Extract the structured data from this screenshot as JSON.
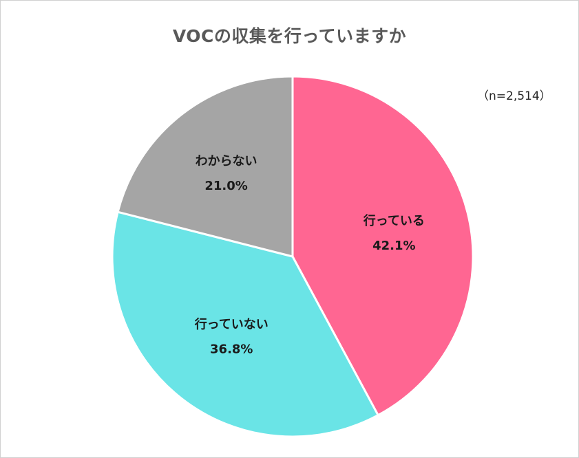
{
  "chart_data": {
    "type": "pie",
    "title": "VOCの収集を行っていますか",
    "note": "（n=2,514）",
    "slices": [
      {
        "label": "行っている",
        "value": 42.1,
        "display": "42.1%",
        "color": "#ff6692"
      },
      {
        "label": "行っていない",
        "value": 36.8,
        "display": "36.8%",
        "color": "#6ae4e6"
      },
      {
        "label": "わからない",
        "value": 21.0,
        "display": "21.0%",
        "color": "#a5a5a5"
      }
    ],
    "start_angle": "12 o'clock",
    "direction": "clockwise",
    "legend": "none",
    "labels": "inside slices"
  }
}
